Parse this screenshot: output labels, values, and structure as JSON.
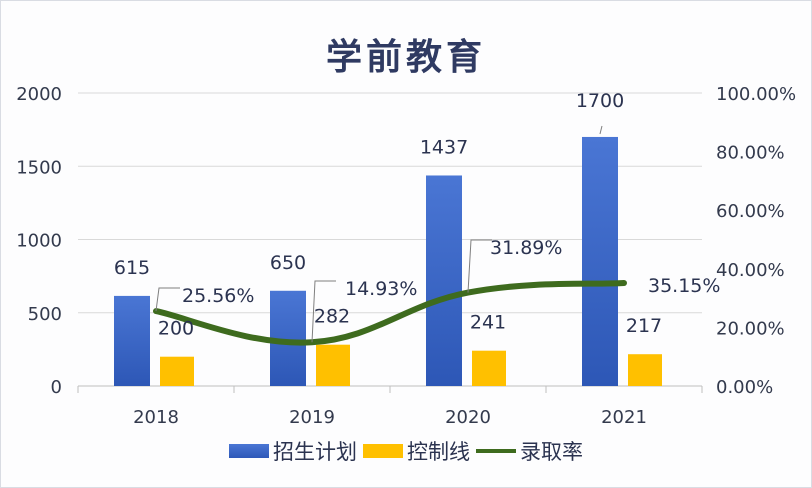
{
  "title": "学前教育",
  "colors": {
    "plan": "#3a64c6",
    "control": "#ffc000",
    "rate": "#3e6b1e"
  },
  "axes": {
    "left_ticks": [
      "0",
      "500",
      "1000",
      "1500",
      "2000"
    ],
    "right_ticks": [
      "0.00%",
      "20.00%",
      "40.00%",
      "60.00%",
      "80.00%",
      "100.00%"
    ]
  },
  "legend": [
    {
      "label": "招生计划",
      "type": "bar",
      "color": "#3a64c6"
    },
    {
      "label": "控制线",
      "type": "bar",
      "color": "#ffc000"
    },
    {
      "label": "录取率",
      "type": "line",
      "color": "#3e6b1e"
    }
  ],
  "chart_data": {
    "type": "bar",
    "title": "学前教育",
    "categories": [
      "2018",
      "2019",
      "2020",
      "2021"
    ],
    "series": [
      {
        "name": "招生计划",
        "type": "bar",
        "axis": "left",
        "values": [
          615,
          650,
          1437,
          1700
        ],
        "labels": [
          "615",
          "650",
          "1437",
          "1700"
        ]
      },
      {
        "name": "控制线",
        "type": "bar",
        "axis": "left",
        "values": [
          200,
          282,
          241,
          217
        ],
        "labels": [
          "200",
          "282",
          "241",
          "217"
        ]
      },
      {
        "name": "录取率",
        "type": "line",
        "axis": "right",
        "values": [
          25.56,
          14.93,
          31.89,
          35.15
        ],
        "labels": [
          "25.56%",
          "14.93%",
          "31.89%",
          "35.15%"
        ]
      }
    ],
    "xlabel": "",
    "ylabel": "",
    "ylim": [
      0,
      2000
    ],
    "y2lim": [
      0,
      100
    ],
    "grid": true,
    "legend_position": "bottom"
  }
}
